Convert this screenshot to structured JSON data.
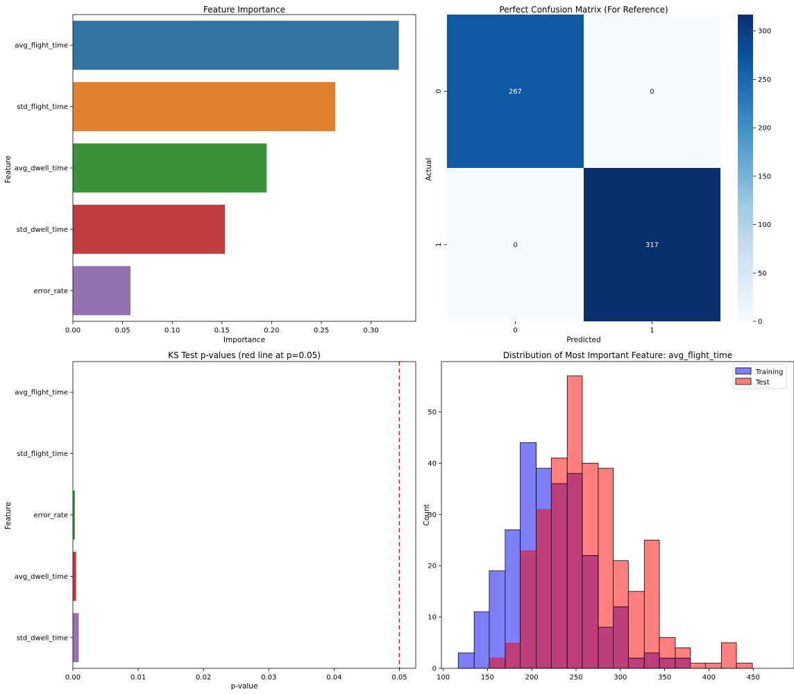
{
  "chart_data": [
    {
      "type": "bar",
      "orientation": "horizontal",
      "title": "Feature Importance",
      "xlabel": "Importance",
      "ylabel": "Feature",
      "categories": [
        "avg_flight_time",
        "std_flight_time",
        "avg_dwell_time",
        "std_dwell_time",
        "error_rate"
      ],
      "values": [
        0.328,
        0.264,
        0.195,
        0.153,
        0.058
      ],
      "colors": [
        "#3274a1",
        "#e1812c",
        "#3a923a",
        "#c03d3e",
        "#9372b2"
      ],
      "xlim": [
        0,
        0.345
      ],
      "xticks": [
        "0.00",
        "0.05",
        "0.10",
        "0.15",
        "0.20",
        "0.25",
        "0.30"
      ],
      "grid": false
    },
    {
      "type": "heatmap",
      "title": "Perfect Confusion Matrix (For Reference)",
      "xlabel": "Predicted",
      "ylabel": "Actual",
      "x_categories": [
        "0",
        "1"
      ],
      "y_categories": [
        "0",
        "1"
      ],
      "values": [
        [
          267,
          0
        ],
        [
          0,
          317
        ]
      ],
      "colormap": "Blues",
      "vmin": 0,
      "vmax": 317,
      "colorbar_ticks": [
        "0",
        "50",
        "100",
        "150",
        "200",
        "250",
        "300"
      ]
    },
    {
      "type": "bar",
      "orientation": "horizontal",
      "title": "KS Test p-values (red line at p=0.05)",
      "xlabel": "p-value",
      "ylabel": "Feature",
      "categories": [
        "avg_flight_time",
        "std_flight_time",
        "error_rate",
        "avg_dwell_time",
        "std_dwell_time"
      ],
      "values": [
        0.0,
        0.0,
        0.0003,
        0.0005,
        0.0009
      ],
      "colors": [
        "#3274a1",
        "#e1812c",
        "#3a923a",
        "#c03d3e",
        "#9372b2"
      ],
      "xlim": [
        0,
        0.0525
      ],
      "xticks": [
        "0.00",
        "0.01",
        "0.02",
        "0.03",
        "0.04",
        "0.05"
      ],
      "reference_line": {
        "value": 0.05,
        "color": "#e01010",
        "style": "dashed"
      },
      "grid": false
    },
    {
      "type": "histogram",
      "title": "Distribution of Most Important Feature: avg_flight_time",
      "xlabel": "",
      "ylabel": "Count",
      "xlim": [
        98,
        496
      ],
      "ylim": [
        0,
        59.8
      ],
      "xticks": [
        "100",
        "150",
        "200",
        "250",
        "300",
        "350",
        "400",
        "450"
      ],
      "yticks": [
        "0",
        "10",
        "20",
        "30",
        "40",
        "50"
      ],
      "legend_position": "upper right",
      "series": [
        {
          "name": "Training",
          "color": "#7f7ff8",
          "bins": [
            {
              "x0": 117,
              "x1": 135,
              "count": 3
            },
            {
              "x0": 135,
              "x1": 152,
              "count": 11
            },
            {
              "x0": 152,
              "x1": 170,
              "count": 19
            },
            {
              "x0": 170,
              "x1": 187,
              "count": 27
            },
            {
              "x0": 187,
              "x1": 205,
              "count": 44
            },
            {
              "x0": 205,
              "x1": 222,
              "count": 39
            },
            {
              "x0": 222,
              "x1": 240,
              "count": 36
            },
            {
              "x0": 240,
              "x1": 257,
              "count": 38
            },
            {
              "x0": 257,
              "x1": 275,
              "count": 22
            },
            {
              "x0": 275,
              "x1": 292,
              "count": 8
            },
            {
              "x0": 292,
              "x1": 309,
              "count": 12
            },
            {
              "x0": 309,
              "x1": 327,
              "count": 2
            },
            {
              "x0": 327,
              "x1": 344,
              "count": 3
            },
            {
              "x0": 344,
              "x1": 362,
              "count": 2
            },
            {
              "x0": 362,
              "x1": 379,
              "count": 2
            }
          ]
        },
        {
          "name": "Test",
          "color": "#ff7f7f",
          "bins": [
            {
              "x0": 152,
              "x1": 170,
              "count": 2
            },
            {
              "x0": 170,
              "x1": 187,
              "count": 5
            },
            {
              "x0": 187,
              "x1": 205,
              "count": 23
            },
            {
              "x0": 205,
              "x1": 222,
              "count": 31
            },
            {
              "x0": 222,
              "x1": 240,
              "count": 41
            },
            {
              "x0": 240,
              "x1": 257,
              "count": 57
            },
            {
              "x0": 257,
              "x1": 275,
              "count": 40
            },
            {
              "x0": 275,
              "x1": 292,
              "count": 39
            },
            {
              "x0": 292,
              "x1": 309,
              "count": 21
            },
            {
              "x0": 309,
              "x1": 327,
              "count": 15
            },
            {
              "x0": 327,
              "x1": 344,
              "count": 25
            },
            {
              "x0": 344,
              "x1": 362,
              "count": 6
            },
            {
              "x0": 362,
              "x1": 379,
              "count": 4
            },
            {
              "x0": 379,
              "x1": 396,
              "count": 1
            },
            {
              "x0": 396,
              "x1": 414,
              "count": 1
            },
            {
              "x0": 414,
              "x1": 431,
              "count": 5
            },
            {
              "x0": 431,
              "x1": 449,
              "count": 1
            }
          ]
        }
      ],
      "overlap_color": "#be3d7b"
    }
  ]
}
